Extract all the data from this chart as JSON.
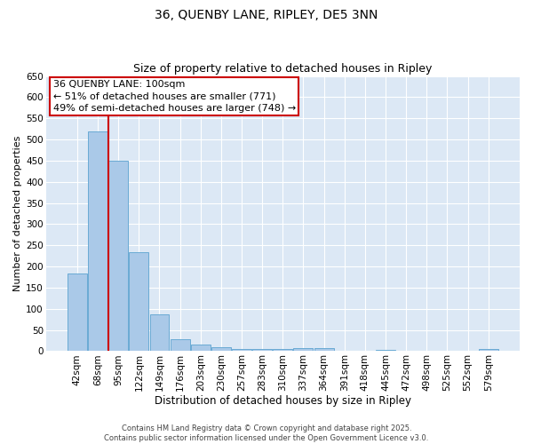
{
  "title1": "36, QUENBY LANE, RIPLEY, DE5 3NN",
  "title2": "Size of property relative to detached houses in Ripley",
  "xlabel": "Distribution of detached houses by size in Ripley",
  "ylabel": "Number of detached properties",
  "categories": [
    "42sqm",
    "68sqm",
    "95sqm",
    "122sqm",
    "149sqm",
    "176sqm",
    "203sqm",
    "230sqm",
    "257sqm",
    "283sqm",
    "310sqm",
    "337sqm",
    "364sqm",
    "391sqm",
    "418sqm",
    "445sqm",
    "472sqm",
    "498sqm",
    "525sqm",
    "552sqm",
    "579sqm"
  ],
  "values": [
    183,
    519,
    449,
    233,
    86,
    29,
    15,
    9,
    6,
    5,
    5,
    7,
    8,
    1,
    1,
    3,
    1,
    1,
    1,
    1,
    5
  ],
  "bar_color": "#aac9e8",
  "bar_edge_color": "#6aaad4",
  "vline_color": "#cc0000",
  "annotation_line1": "36 QUENBY LANE: 100sqm",
  "annotation_line2": "← 51% of detached houses are smaller (771)",
  "annotation_line3": "49% of semi-detached houses are larger (748) →",
  "annotation_box_color": "#ffffff",
  "annotation_box_edge": "#cc0000",
  "ylim": [
    0,
    650
  ],
  "yticks": [
    0,
    50,
    100,
    150,
    200,
    250,
    300,
    350,
    400,
    450,
    500,
    550,
    600,
    650
  ],
  "background_color": "#dce8f5",
  "footer_text": "Contains HM Land Registry data © Crown copyright and database right 2025.\nContains public sector information licensed under the Open Government Licence v3.0.",
  "title_fontsize": 10,
  "subtitle_fontsize": 9,
  "xlabel_fontsize": 8.5,
  "ylabel_fontsize": 8,
  "tick_fontsize": 7.5,
  "annotation_fontsize": 8,
  "footer_fontsize": 6
}
